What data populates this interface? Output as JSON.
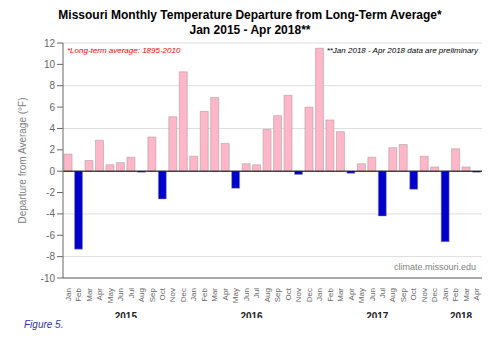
{
  "chart_data": {
    "type": "bar",
    "title": "Missouri Monthly Temperature Departure from Long-Term Average*",
    "subtitle": "Jan 2015 - Apr 2018**",
    "ylabel": "Departure from Average (°F)",
    "annotations": [
      "*Long-term average: 1895-2010",
      "**Jan 2018 - Apr 2018 data are preliminary",
      "climate.missouri.edu",
      "Figure 5."
    ],
    "group_labels": [
      "2015",
      "2016",
      "2017",
      "2018"
    ],
    "categories": [
      "Jan",
      "Feb",
      "Mar",
      "Apr",
      "May",
      "Jun",
      "Jul",
      "Aug",
      "Sep",
      "Oct",
      "Nov",
      "Dec",
      "Jan",
      "Feb",
      "Mar",
      "Apr",
      "May",
      "Jun",
      "Jul",
      "Aug",
      "Sep",
      "Oct",
      "Nov",
      "Dec",
      "Jan",
      "Feb",
      "Mar",
      "Apr",
      "May",
      "Jun",
      "Jul",
      "Aug",
      "Sep",
      "Oct",
      "Nov",
      "Dec",
      "Jan",
      "Feb",
      "Mar",
      "Apr"
    ],
    "values": [
      1.6,
      -7.3,
      1.0,
      2.9,
      0.6,
      0.8,
      1.3,
      -0.1,
      3.2,
      -2.6,
      5.1,
      9.3,
      1.4,
      5.6,
      6.9,
      2.6,
      -1.6,
      0.7,
      0.6,
      3.9,
      5.2,
      7.1,
      -0.3,
      6.0,
      11.5,
      4.8,
      3.7,
      -0.2,
      0.7,
      1.3,
      -4.2,
      2.2,
      2.5,
      -1.7,
      1.4,
      0.4,
      -6.6,
      2.1,
      0.4,
      -0.1
    ],
    "colors": [
      "#FFB6C8",
      "#0000CC",
      "#FFB6C8",
      "#FFB6C8",
      "#FFB6C8",
      "#FFB6C8",
      "#FFB6C8",
      "#0000CC",
      "#FFB6C8",
      "#0000CC",
      "#FFB6C8",
      "#FFB6C8",
      "#FFB6C8",
      "#FFB6C8",
      "#FFB6C8",
      "#FFB6C8",
      "#0000CC",
      "#FFB6C8",
      "#FFB6C8",
      "#FFB6C8",
      "#FFB6C8",
      "#FFB6C8",
      "#0000CC",
      "#FFB6C8",
      "#FFB6C8",
      "#FFB6C8",
      "#FFB6C8",
      "#0000CC",
      "#FFB6C8",
      "#FFB6C8",
      "#0000CC",
      "#FFB6C8",
      "#FFB6C8",
      "#0000CC",
      "#FFB6C8",
      "#FFB6C8",
      "#0000CC",
      "#FFB6C8",
      "#FFB6C8",
      "#0000CC"
    ],
    "ylim": [
      -10,
      12
    ],
    "yticks": [
      -10,
      -8,
      -6,
      -4,
      -2,
      0,
      2,
      4,
      6,
      8,
      10,
      12
    ],
    "grid": true
  }
}
